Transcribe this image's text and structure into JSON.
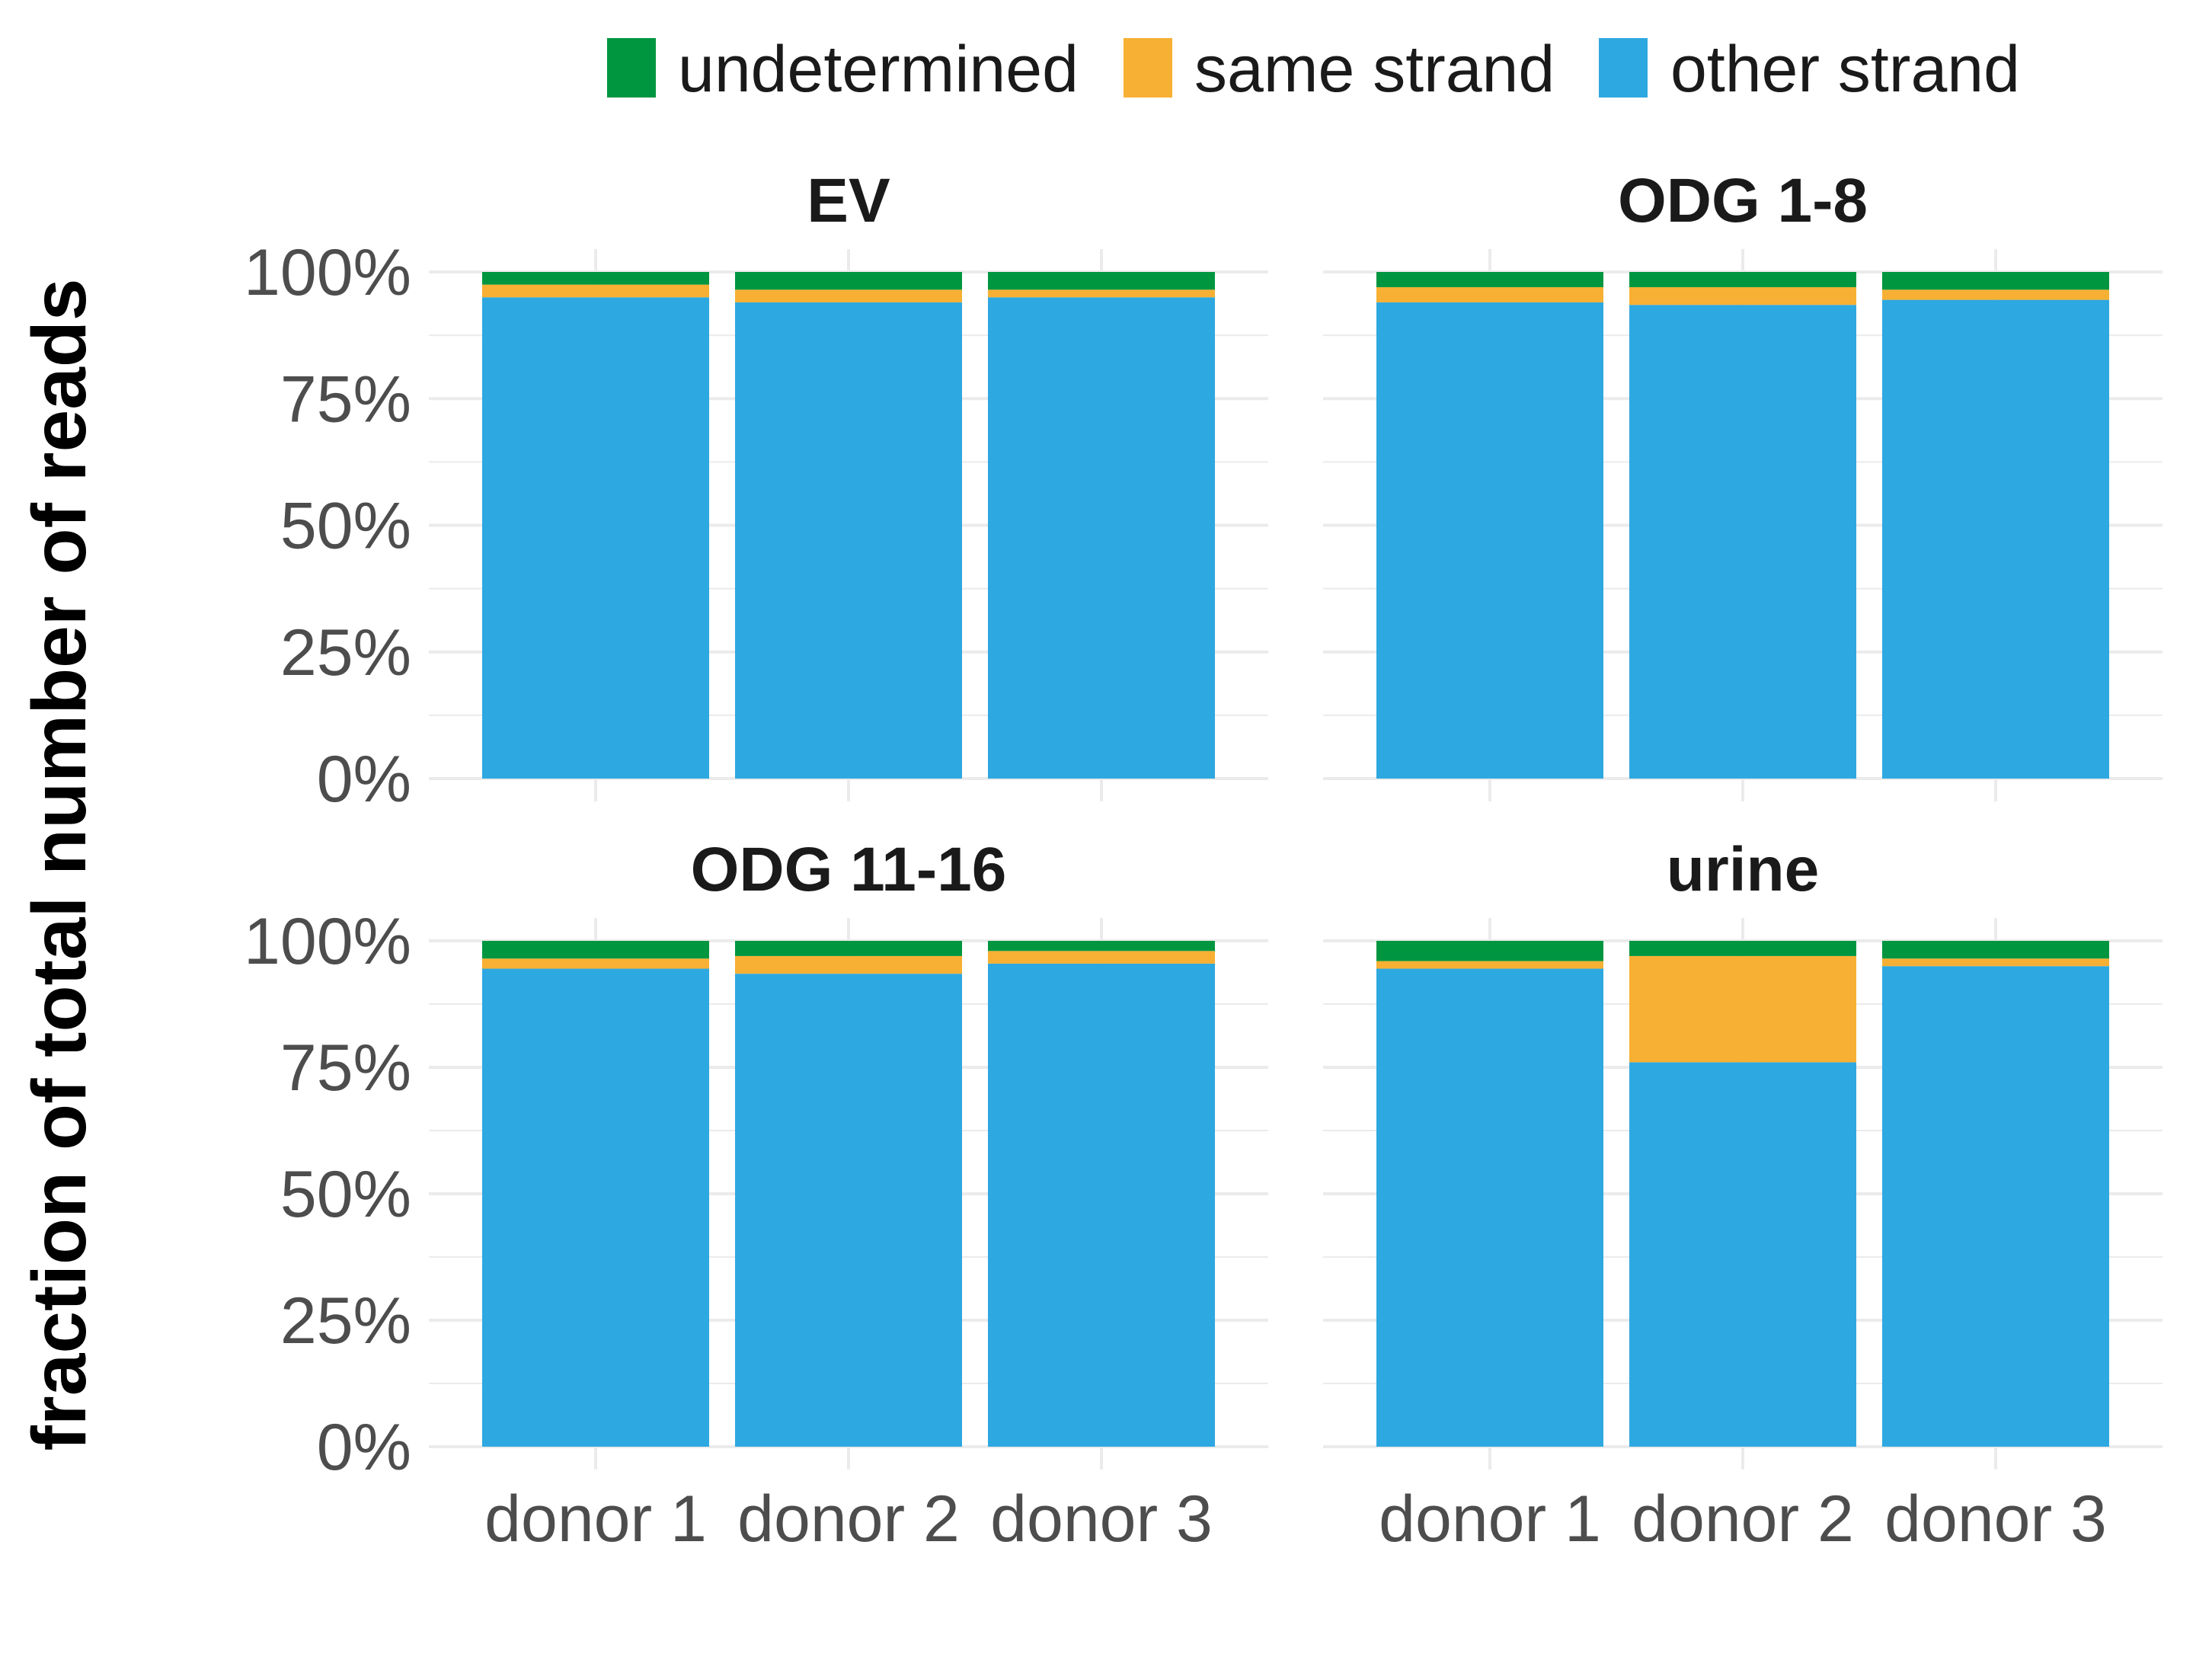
{
  "chart_data": {
    "type": "bar",
    "stacked": true,
    "ylabel": "fraction of total number of reads",
    "xlabel": "",
    "ylim": [
      0,
      100
    ],
    "y_ticks": [
      "0%",
      "25%",
      "50%",
      "75%",
      "100%"
    ],
    "categories": [
      "donor 1",
      "donor 2",
      "donor 3"
    ],
    "legend": {
      "position": "top",
      "entries": [
        {
          "name": "undetermined",
          "color": "#009640"
        },
        {
          "name": "same strand",
          "color": "#F7B033"
        },
        {
          "name": "other strand",
          "color": "#2EA8E0"
        }
      ]
    },
    "grid": true,
    "panels": [
      {
        "title": "EV",
        "series": [
          {
            "name": "other strand",
            "values": [
              95.0,
              94.0,
              95.0
            ]
          },
          {
            "name": "same strand",
            "values": [
              2.5,
              2.5,
              1.5
            ]
          },
          {
            "name": "undetermined",
            "values": [
              2.5,
              3.5,
              3.5
            ]
          }
        ]
      },
      {
        "title": "ODG 1-8",
        "series": [
          {
            "name": "other strand",
            "values": [
              94.0,
              93.5,
              94.5
            ]
          },
          {
            "name": "same strand",
            "values": [
              3.0,
              3.5,
              2.0
            ]
          },
          {
            "name": "undetermined",
            "values": [
              3.0,
              3.0,
              3.5
            ]
          }
        ]
      },
      {
        "title": "ODG 11-16",
        "series": [
          {
            "name": "other strand",
            "values": [
              94.5,
              93.5,
              95.5
            ]
          },
          {
            "name": "same strand",
            "values": [
              2.0,
              3.5,
              2.5
            ]
          },
          {
            "name": "undetermined",
            "values": [
              3.5,
              3.0,
              2.0
            ]
          }
        ]
      },
      {
        "title": "urine",
        "series": [
          {
            "name": "other strand",
            "values": [
              94.5,
              76.0,
              95.0
            ]
          },
          {
            "name": "same strand",
            "values": [
              1.5,
              21.0,
              1.5
            ]
          },
          {
            "name": "undetermined",
            "values": [
              4.0,
              3.0,
              3.5
            ]
          }
        ]
      }
    ]
  }
}
